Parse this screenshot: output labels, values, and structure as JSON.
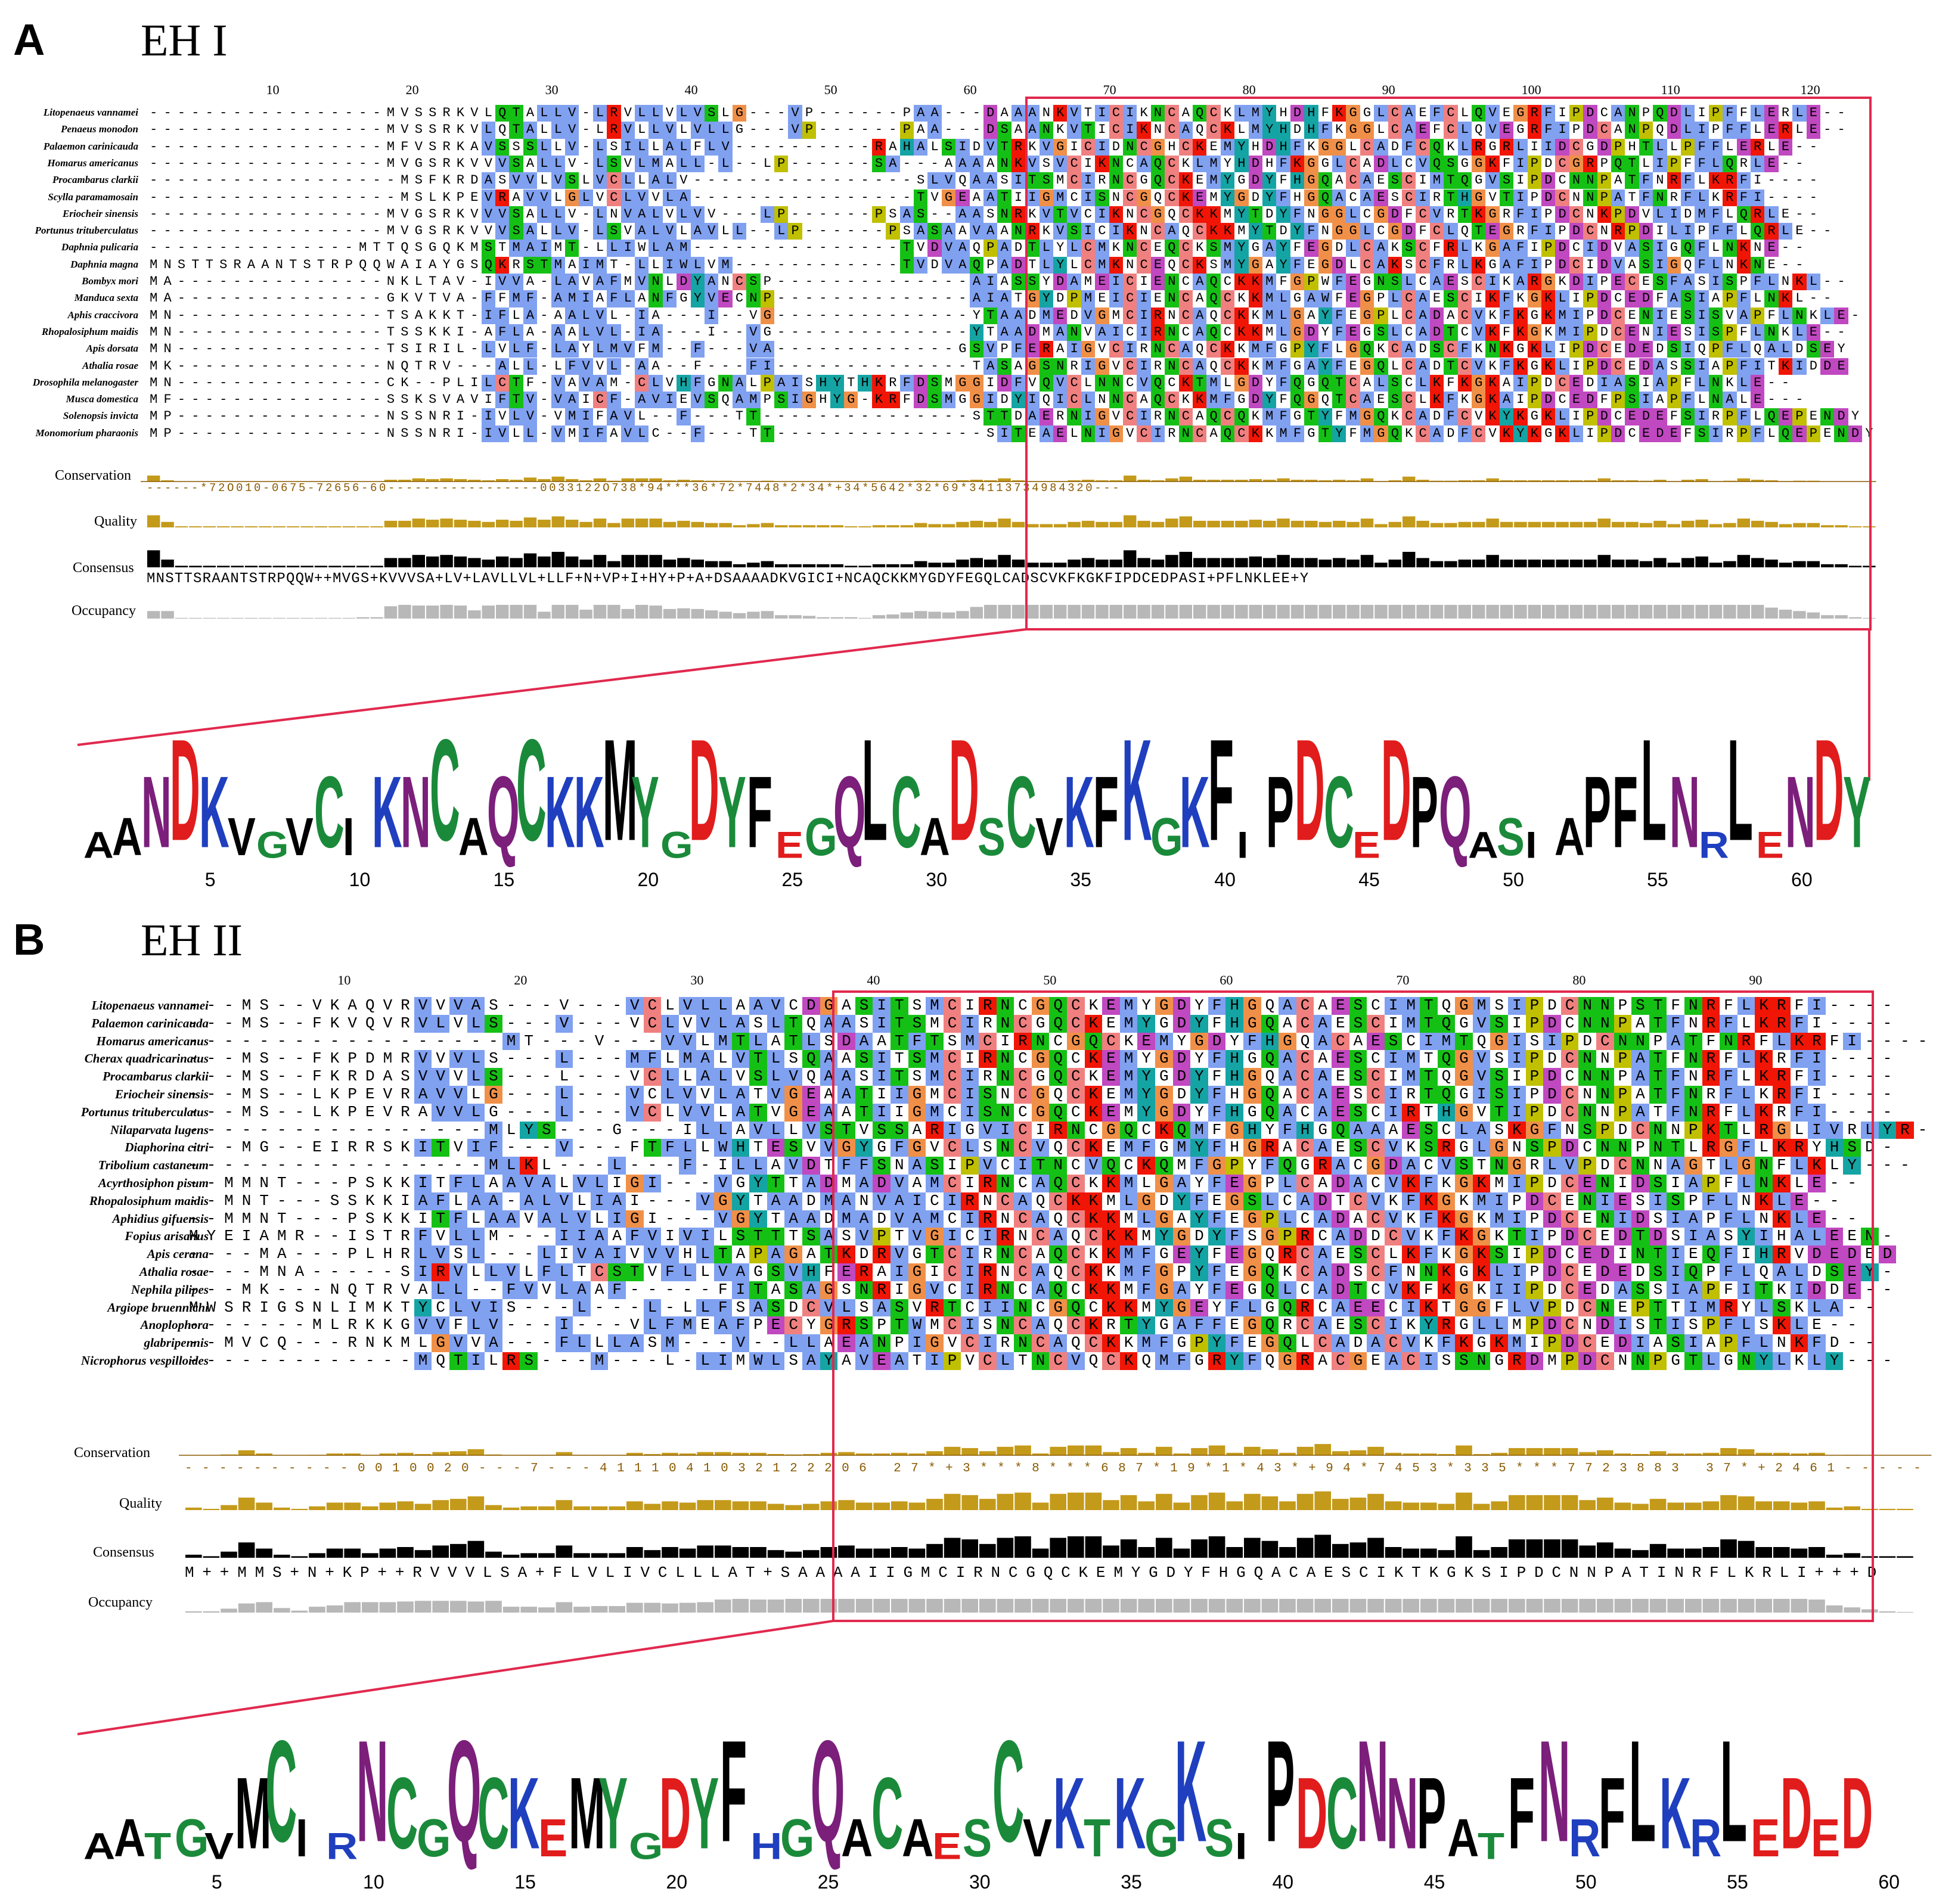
{
  "colors": {
    "highlight_box": "#e1294e",
    "hydrophobic": "#80a0f0",
    "cys": "#f08080",
    "pos": "#f01505",
    "neg": "#c048c0",
    "polar": "#15c015",
    "gly": "#f09048",
    "pro": "#c0c000",
    "aromatic": "#15a4a4",
    "conservation_bar": "#c49a1a",
    "conservation_high": "#ffe600",
    "consensus_bar": "#000000",
    "occupancy_bar": "#b8b8b8",
    "logo_green": "#1a8a3a",
    "logo_purple": "#7b1f7b",
    "logo_blue": "#1f3fbf",
    "logo_red": "#e11c1c",
    "logo_black": "#000000"
  },
  "panels": [
    {
      "letter": "A",
      "title": "EH I",
      "ruler": [
        "10",
        "20",
        "30",
        "40",
        "50",
        "60",
        "70",
        "80",
        "90",
        "100",
        "110",
        "120"
      ],
      "species": [
        "Litopenaeus vannamei",
        "Penaeus monodon",
        "Palaemon carinicauda",
        "Homarus americanus",
        "Procambarus clarkii",
        "Scylla paramamosain",
        "Eriocheir sinensis",
        "Portunus trituberculatus",
        "Daphnia pulicaria",
        "Daphnia magna",
        "Bombyx mori",
        "Manduca sexta",
        "Aphis craccivora",
        "Rhopalosiphum maidis",
        "Apis dorsata",
        "Athalia rosae",
        "Drosophila melanogaster",
        "Musca domestica",
        "Solenopsis invicta",
        "Monomorium pharaonis"
      ],
      "sequences": [
        "-----------------MVSSRKVLQTALLV-LRVLLVLVSLG---VP------PAA---DAAANKVTICIKNCAQCKLMYHDHFKGGLCAEFCLQVEGRFIPDCANPQDLIPFFLERLE--",
        "-----------------MVSSRKVLQTALLV-LRVLLVLVLLG---VP------PAA---DSAANKVTICIKNCAQCKLMYHDHFKGGLCAEFCLQVEGRFIPDCANPQDLIPFFLERLE--",
        "-----------------MFVSRKAVSSSLLV-LSILLALFLV----------RAHALSIDVTRKVGICIDNCGHCKEMYHDHFKGGLCADFCQKLRGRLIIDCGDPHTLLPFFLERLE--",
        "-----------------MVGSRKVVVSALLV-LSVLMALL-L--LP------SA---AAAANKVSVCIKNCAQCKLMYHDHFKGGLCADLCVQSGGKFIPDCGRPQTLIPFFLQRLE--",
        "------------------MSFKRDASVVLVSLVCLLALV----------------SLVQAASITSMCIRNCGQCKEMYGDYFHGQACAESCIMTQGVSIPDCNNPATFNRFLKRFI----",
        "------------------MSLKPEVRAVVLGLVCLVVLA----------------TVGEAATIIGMCISNCGQCKEMYGDYFHGQACAESCIRTHGVTIPDCNNPATFNRFLKRFI----",
        "-----------------MVGSRKVVVSALLV-LNVALVLVV---LP------PSAS--AASNRKVTVCIKNCGQCKKMYTDYFNGGLCGDFCVRTKGRFIPDCNKPDVLIDMFLQRLE--",
        "-----------------MVGSRKVVVSALLV-LSVALVLAVLL--LP------PSASAAVAANRKVSICIKNCAQCKKMYTDYFNGGLCGDFCLQTEGRFIPDCNRPDILIPFFLQRLE--",
        "---------------MTTQSGQKMSTMAIMT-LLIWLAM---------------TVDVAQPADTLYLCMKNCEQCKSMYGAYFEGDLCAKSCFRLKGAFIPDCIDVASIGQFLNKNE--",
        "MNSTTSRAANTSTRPQQWAIAYGSQKRSTMAIMT-LLIWLVM------------TVDVAQPADTLYLCMKNCEQCKSMYGAYFEGDLCAKSCFRLKGAFIPDCIDVASIGQFLNKNE--",
        "MA---------------NKLTAV-IVVA-LAVAFMVNLDYANCSP--------------AIASSYDAMEICIENCAQCKKMFGPWFEGNSLCAESCIKARGKDIPECESFASISPFLNKL--",
        "MA---------------GKVTVA-FFMF-AMIAFLANFGYVECNP--------------AIATGYDPMEICIENCAQCKKMLGAWFEGPLCAESCIKFKGKLIPDCEDFASIAPFLNKL--",
        "MN---------------TSAKKT-IFLA-AALVL-IA---I--VG--------------YTAADMEDVGMCIRNCAQCKKMLGAYFEGPLCADACVKFKGKMIPDCENIESISVAPFLNKLE-",
        "MN---------------TSSKKI-AFLA-AALVL-IA---I--VG--------------YTAADMANVAICIRNCAQCKKMLGDYFEGSLCADTCVKFKGKMIPDCENIESISPFLNKLE--",
        "MN---------------TSIRIL-LVLF-LAYLMVFM--F---VA-------------GSVPFERAIGVCIRNCAQCKKMFGPYFLGQKCADSCFKNKGKLIPDCEDEDSIQPFLQALDSEY",
        "MK---------------NQTRV---ALL-LFVVL-AA--F---FI--------------TASAGSNRIGVCIRNCAQCKKMFGAYFEGQLCADTCVKFKGKLIPDCEDASSIAPFITKIDDE",
        "MN---------------CK--PLILCTF-VAVAM-CLVHFGNALPAISHYTHKRFDSMGGIDFVQVCLNNCVQCKTMLGDYFQGQTCALSCLKFKGKAIPDCEDIASIAPFLNKLE--",
        "MF---------------SSKSVAVIFTV-VAICF-AVIEVSQAMPSIGHYG-KRFDSMGGIDYIQICLNNCAQCKKMFGDYFQGQTCAESCLKFKGKAIPDCEDFPSIAPFLNALE---",
        "MP---------------NSSNRI-IVLV-VMIFAVL--F---TT---------------STTDAERNIGVCIRNCAQCQKMFGTYFMGQKCADFCVKYKGKLIPDCEDEFSIRPFLQEPENDY",
        "MP---------------NSSNRI-IVLL-VMIFAVLC--F---TT---------------SITEAELNIGVCIRNCAQCKKMFGTYFMGQKCADFCVKYKGKLIPDCEDEFSIRPFLQEPENDY"
      ],
      "tracks": {
        "conservation_label": "Conservation",
        "conservation_scores": "------*72O010-0675-72656-60-----------------0033122O738*94***36*72*7448*2*34*+34*5642*32*69*34113734984320---",
        "quality_label": "Quality",
        "consensus_label": "Consensus",
        "consensus_seq": "MNSTTSRAANTSTRPQQW++MVGS+KVVVSA+LV+LAVLLVL+LLF+N+VP+I+HY+P+A+DSAAAADKVGICI+NCAQCKKMYGDYFEGQLCADSCVKFKGKFIPDCEDPASI+PFLNKLEE+Y",
        "occupancy_label": "Occupancy"
      },
      "logo": {
        "axis": [
          "5",
          "10",
          "15",
          "20",
          "25",
          "30",
          "35",
          "40",
          "45",
          "50",
          "55",
          "60"
        ],
        "letters": "AANDKVGVCIKNCAQCKKMYGDYFEGQLCADSCVKFKGKFIPDCEDPQASIAPFLNRLENDY"
      }
    },
    {
      "letter": "B",
      "title": "EH II",
      "ruler": [
        "10",
        "20",
        "30",
        "40",
        "50",
        "60",
        "70",
        "80",
        "90"
      ],
      "species": [
        "Litopenaeus vannamei",
        "Palaemon carinicauda",
        "Homarus americanus",
        "Cherax quadricarinatus",
        "Procambarus clarkii",
        "Eriocheir sinensis",
        "Portunus trituberculatus",
        "Nilaparvata lugens",
        "Diaphorina citri",
        "Tribolium castaneum",
        "Acyrthosiphon pisum",
        "Rhopalosiphum maidis",
        "Aphidius gifuensis",
        "Fopius arisanus",
        "Apis cerana",
        "Athalia rosae",
        "Nephila pilipes",
        "Argiope bruennichi",
        "Anoplophora",
        "glabripennis",
        "Nicrophorus vespilloides"
      ],
      "sequences": [
        "---MS--VKAQVRVVVAS---V---VCLVLLAAVCDGASITSMCIRNCGQCKEMYGDYFHGQACAESCIMTQGMSIPDCNNPSTFNRFLKRFI----",
        "---MS--FKVQVRVLVLS---V---VCLVVLASLTQAASITSMCIRNCGQCKEMYGDYFHGQACAESCIMTQGVSIPDCNNPATFNRFLKRFI----",
        "------------------MT---V---VVLMTLATLSDAATFTSMCIRNCGQCKEMYGDYFHGQACAESCIMTQGISIPDCNNPATFNRFLKRFI----",
        "---MS--FKPDMRVVVLS---L---MFLMALVTLSQAASITSMCIRNCGQCKEMYGDYFHGQACAESCIMTQGVSIPDCNNPATFNRFLKRFI----",
        "---MS--FKRDASVVVLS---L---VCLLALVSLVQAASITSMCIRNCGQCKEMYGDYFHGQACAESCIMTQGVSIPDCNNPATFNRFLKRFI----",
        "---MS--LKPEVRAVVLG---L---VCLVVLATVGEAATIIGMCISNCGQCKEMYGDYFHGQACAESCIRTQGISIPDCNNPATFNRFLKRFI----",
        "---MS--LKPEVRAVVLG---L---VCLVVLATVGEAATIIGMCISNCGQCKEMYGDYFHGQACAESCIRTHGVTIPDCNNPATFNRFLKRFI----",
        "-----------------MLYS---G---ILLAVLLVSTVSSARIGVICIRNCGQCKQMFGHYFHGQAAAESCLASKGFNSPDCNNPKTLRGLIVRLYR-",
        "---MG--EIRRSKITVIF---V---FTFLLWHTESVVGYGFGVCLSNCVQCKEMFGMYFHGRACAESCVKSRGLGNSPDCNNPNTLRGFLKRYHSD-",
        "-----------------MLKL---L---F-ILLAVDTFFSNASIPVCITNCVQCKQMFGPYFQGRACGDACVSTNGRLVPDCNNAGTLGNFLKLY---",
        "--MMNT---PSKKITFLAAVALVLIGI---VGYTTADMADVAMCIRNCAQCKKMLGAYFEGPLCADACVKFKGKMIPDCENIDSIAPFLNKLE--",
        "--MNT---SSKKIAFLAA-ALVLIAI---VGYTAADMANVAICIRNCAQCKKMLGDYFEGSLCADTCVKFKGKMIPDCENIESISPFLNKLE--",
        "--MMNT---PSKKITFLAAVALVLIGI---VGYTAADMADVAMCIRNCAQCKKMLGAYFEGPLCADACVKFKGKMIPDCENIDSIAPFLNKLE--",
        "MYEIAMR--ISTRFVLLM---IIAAFVIVILSTTTSASVPTVGICIRNCAQCKKMYGDYFSGPRCADDCVKFKGKTIPDCEDTDSIASYIHALEEN-",
        "----MA---PLHRLVSL---LIVAIVVVHLTAPAGATKDRVGTCIRNCAQCKKMFGEYFEGQRCAESCLKFKGKSIPDCEDINTIEQFIHRVDEDED",
        "----MNA-----SIRVLLVLFLTCSTVFLLVAGSVHFERAIGICIRNCAQCKKMFGPYFEGQKCADSCFNNKGKLIPDCEDEDSIQPFLQALDSEY-",
        "---MK---NQTRVALL--FVVLAAF-----FITASAGSNRIGVCIRNCAQCKKMFGAYFEGQLCADTCVKFKGKIIPDCEDASSIAPFITKIDDE--",
        "MWSRIGSNLIMKTYCLVIS---L---L-LLFSASDCVLSASVRTCIINCGQCKKMYGEYFLGQRCAEECIKTGGFLVPDCNEPTTIMRYLSKLA--",
        "-------MLRKKGVVFLV---I---VLFMEAFPECYGRSPTWMCISNCAQCKRTYGAFFEGQRCAESCIKYRGLLMPDCNDISTISPFLSKLE--",
        "--MVCQ---RNKMLGVVA---FLLLASM---V--LLAEANPIGVCIRNCAQCKKMFGPYFEGQLCADACVKFKGKMIPDCEDIASIAPFLNKFD--",
        "-------------MQTILRS---M---L-LIMWLSAYAVEATIPVCLTNCVQCKQMFGRYFQGRACGEACISSNGRDMPDCNNPGTLGNYLKLY---"
      ],
      "tracks": {
        "conservation_label": "Conservation",
        "conservation_scores": "----------0010020---7---4111041032122206 27*+3***8***687*19*1*43*+94*7453*335***7723883 37*+2461-----",
        "quality_label": "Quality",
        "consensus_label": "Consensus",
        "consensus_seq": "M++MMS+N+KP++RVVVLSA+FLVLIVCLLLAT+SAAAAIIGMCIRNCGQCKEMYGDYFHGQACAESCIKTKGKSIPDCNNPATINRFLKRLI+++D",
        "occupancy_label": "Occupancy"
      },
      "logo": {
        "axis": [
          "5",
          "10",
          "15",
          "20",
          "25",
          "30",
          "35",
          "40",
          "45",
          "50",
          "55",
          "60"
        ],
        "letters": "AATGVMCIRNCGQCKEMYGDYFHGQACAESCVKTKGKSIPDCNNPATFNRFLKRLEDED"
      }
    }
  ]
}
